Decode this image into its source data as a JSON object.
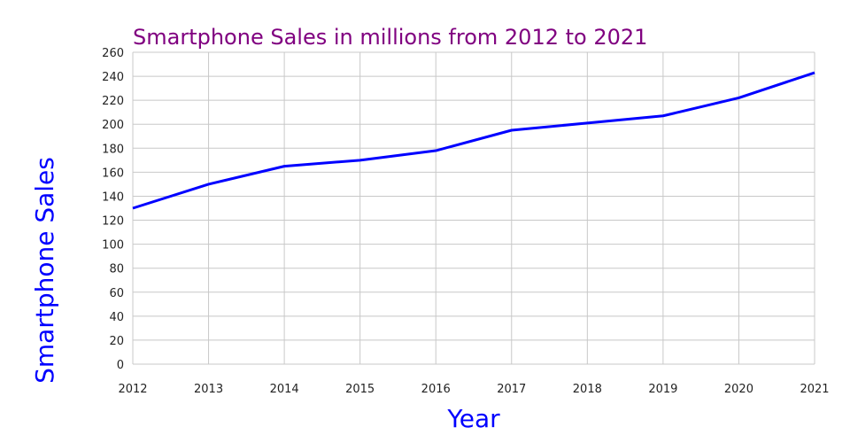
{
  "chart_data": {
    "type": "line",
    "title": "Smartphone Sales in millions from 2012 to 2021",
    "xlabel": "Year",
    "ylabel": "Smartphone Sales",
    "x": [
      "2012",
      "2013",
      "2014",
      "2015",
      "2016",
      "2017",
      "2018",
      "2019",
      "2020",
      "2021"
    ],
    "series": [
      {
        "values": [
          130,
          150,
          165,
          170,
          178,
          195,
          201,
          207,
          222,
          243
        ],
        "color": "#0000ff"
      }
    ],
    "ylim": [
      0,
      260
    ],
    "yticks": [
      0,
      20,
      40,
      60,
      80,
      100,
      120,
      140,
      160,
      180,
      200,
      220,
      240,
      260
    ],
    "grid": true,
    "colors": {
      "title": "#800080",
      "axis_label": "#0000ff",
      "grid": "#c8c8c8"
    }
  }
}
